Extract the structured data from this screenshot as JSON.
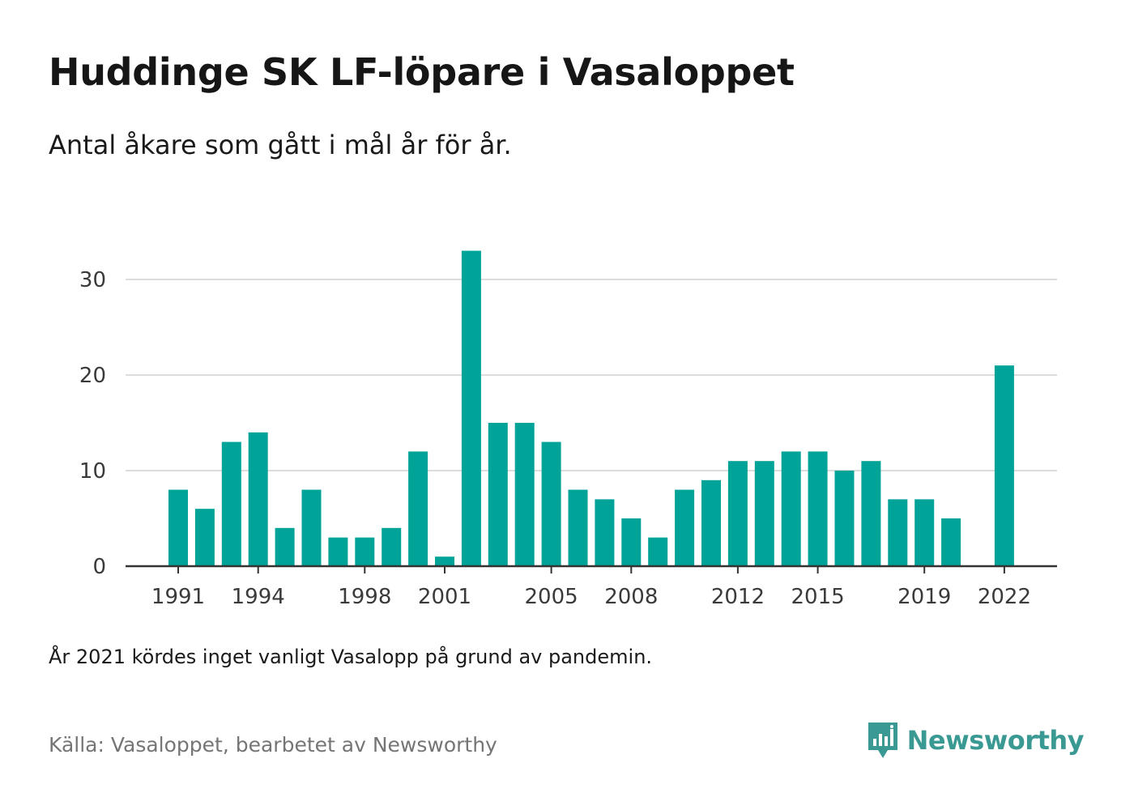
{
  "header": {
    "title": "Huddinge SK LF-löpare i Vasaloppet",
    "subtitle": "Antal åkare som gått i mål år för år."
  },
  "footer": {
    "note": "År 2021 kördes inget vanligt Vasalopp på grund av pandemin.",
    "source": "Källa: Vasaloppet, bearbetet av Newsworthy",
    "brand": "Newsworthy",
    "brand_icon": "newsworthy-logo-icon"
  },
  "colors": {
    "bar": "#00a398",
    "grid": "#dcdcdc",
    "baseline": "#333333",
    "brand": "#3a9a93"
  },
  "chart_data": {
    "type": "bar",
    "categories": [
      1991,
      1992,
      1993,
      1994,
      1995,
      1996,
      1997,
      1998,
      1999,
      2000,
      2001,
      2002,
      2003,
      2004,
      2005,
      2006,
      2007,
      2008,
      2009,
      2010,
      2011,
      2012,
      2013,
      2014,
      2015,
      2016,
      2017,
      2018,
      2019,
      2020,
      2021,
      2022
    ],
    "values": [
      8,
      6,
      13,
      14,
      4,
      8,
      3,
      3,
      4,
      12,
      1,
      33,
      15,
      15,
      13,
      8,
      7,
      5,
      3,
      8,
      9,
      11,
      11,
      12,
      12,
      10,
      11,
      7,
      7,
      5,
      null,
      21
    ],
    "x_tick_labels": [
      "1991",
      "1994",
      "1998",
      "2001",
      "2005",
      "2008",
      "2012",
      "2015",
      "2019",
      "2022"
    ],
    "y_ticks": [
      0,
      10,
      20,
      30
    ],
    "ylim": [
      0,
      33
    ],
    "grid": true,
    "legend": "none"
  }
}
